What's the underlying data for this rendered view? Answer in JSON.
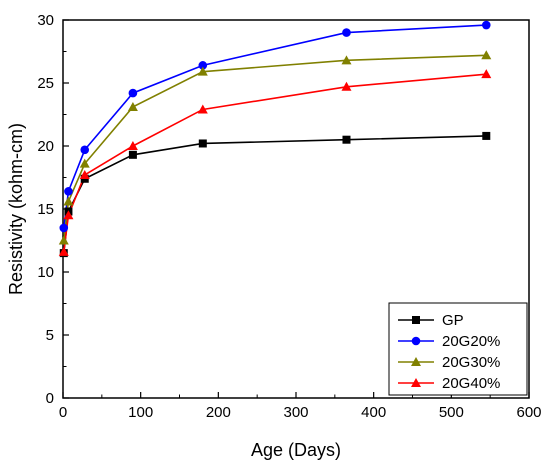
{
  "chart_data": {
    "type": "line",
    "title": "",
    "xlabel": "Age (Days)",
    "ylabel": "Resistivity (kohm-cm)",
    "xlim": [
      0,
      600
    ],
    "ylim": [
      0,
      30
    ],
    "xticks": [
      0,
      100,
      200,
      300,
      400,
      500,
      600
    ],
    "yticks": [
      0,
      5,
      10,
      15,
      20,
      25,
      30
    ],
    "grid": false,
    "legend_position": "bottom-right",
    "x": [
      1,
      7,
      28,
      90,
      180,
      365,
      545
    ],
    "series": [
      {
        "name": "GP",
        "color": "#000000",
        "marker": "square",
        "values": [
          11.5,
          14.8,
          17.4,
          19.3,
          20.2,
          20.5,
          20.8
        ]
      },
      {
        "name": "20G20%",
        "color": "#0000ff",
        "marker": "circle",
        "values": [
          13.5,
          16.4,
          19.7,
          24.2,
          26.4,
          29.0,
          29.6
        ]
      },
      {
        "name": "20G30%",
        "color": "#808000",
        "marker": "triangle-up",
        "values": [
          12.5,
          15.6,
          18.6,
          23.1,
          25.9,
          26.8,
          27.2
        ]
      },
      {
        "name": "20G40%",
        "color": "#ff0000",
        "marker": "triangle-up",
        "values": [
          11.6,
          14.5,
          17.7,
          20.0,
          22.9,
          24.7,
          25.7
        ]
      }
    ]
  }
}
